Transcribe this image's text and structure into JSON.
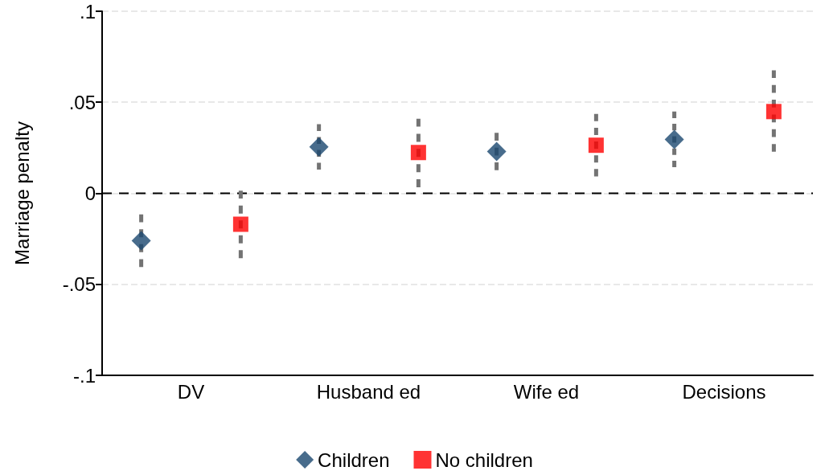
{
  "chart_data": {
    "type": "scatter",
    "ylabel": "Marriage penalty",
    "categories": [
      "DV",
      "Husband ed",
      "Wife ed",
      "Decisions"
    ],
    "series": [
      {
        "name": "Children",
        "color": "#1a476f",
        "marker": "diamond",
        "values": [
          -0.026,
          0.0255,
          0.023,
          0.0296
        ],
        "errors": [
          [
            -0.0405,
            -0.0116
          ],
          [
            0.013,
            0.038
          ],
          [
            0.0127,
            0.0332
          ],
          [
            0.0143,
            0.0449
          ]
        ]
      },
      {
        "name": "No children",
        "color": "#ff0000",
        "marker": "square",
        "values": [
          -0.017,
          0.0224,
          0.0264,
          0.0449
        ],
        "errors": [
          [
            -0.0356,
            0.0014
          ],
          [
            0.0033,
            0.041
          ],
          [
            0.0093,
            0.0436
          ],
          [
            0.0228,
            0.0676
          ]
        ]
      }
    ],
    "ylim": [
      -0.1,
      0.1
    ],
    "yticks": [
      {
        "value": -0.1,
        "label": "-.1"
      },
      {
        "value": -0.05,
        "label": "-.05"
      },
      {
        "value": 0,
        "label": "0"
      },
      {
        "value": 0.05,
        "label": ".05"
      },
      {
        "value": 0.1,
        "label": ".1"
      }
    ],
    "ref_lines": [
      {
        "axis": "y",
        "value": 0,
        "color": "#000000",
        "line_style": "dashed"
      }
    ],
    "grid": "y",
    "legend": "bottom",
    "line_style": "dashed"
  }
}
